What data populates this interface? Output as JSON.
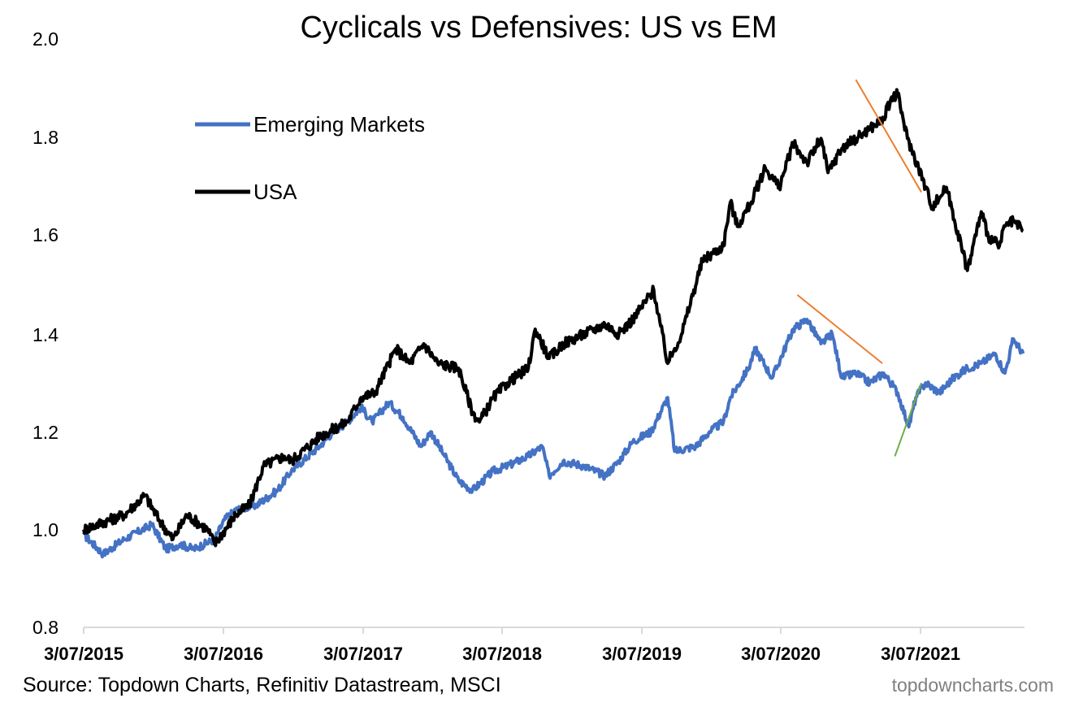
{
  "chart_data": {
    "type": "line",
    "title": "Cyclicals vs Defensives: US vs EM",
    "xlabel": "",
    "ylabel": "",
    "ylim": [
      0.8,
      2.0
    ],
    "yticks": [
      "0.8",
      "1.0",
      "1.2",
      "1.4",
      "1.6",
      "1.8",
      "2.0"
    ],
    "x_tick_labels": [
      "3/07/2015",
      "3/07/2016",
      "3/07/2017",
      "3/07/2018",
      "3/07/2019",
      "3/07/2020",
      "3/07/2021"
    ],
    "x_range": [
      2015.51,
      2022.26
    ],
    "legend_position": "top-left",
    "series": [
      {
        "name": "Emerging Markets",
        "color": "#4472C4",
        "x": [
          2015.51,
          2015.65,
          2015.8,
          2016.0,
          2016.1,
          2016.2,
          2016.3,
          2016.45,
          2016.52,
          2016.6,
          2016.75,
          2016.9,
          2017.0,
          2017.2,
          2017.3,
          2017.4,
          2017.5,
          2017.58,
          2017.7,
          2017.8,
          2017.93,
          2018.0,
          2018.1,
          2018.2,
          2018.3,
          2018.45,
          2018.55,
          2018.7,
          2018.8,
          2018.85,
          2018.95,
          2019.1,
          2019.25,
          2019.35,
          2019.45,
          2019.58,
          2019.7,
          2019.75,
          2019.9,
          2020.0,
          2020.1,
          2020.15,
          2020.28,
          2020.33,
          2020.45,
          2020.6,
          2020.7,
          2020.8,
          2020.88,
          2020.95,
          2021.05,
          2021.15,
          2021.25,
          2021.35,
          2021.43,
          2021.48,
          2021.55,
          2021.65,
          2021.75,
          2021.85,
          2021.95,
          2022.05,
          2022.12,
          2022.18,
          2022.25
        ],
        "values": [
          0.99,
          0.95,
          0.98,
          1.01,
          0.96,
          0.97,
          0.96,
          0.98,
          1.02,
          1.04,
          1.05,
          1.08,
          1.12,
          1.17,
          1.2,
          1.22,
          1.25,
          1.22,
          1.26,
          1.23,
          1.17,
          1.2,
          1.15,
          1.1,
          1.08,
          1.12,
          1.13,
          1.15,
          1.17,
          1.11,
          1.14,
          1.13,
          1.11,
          1.14,
          1.18,
          1.2,
          1.27,
          1.16,
          1.17,
          1.2,
          1.22,
          1.27,
          1.33,
          1.37,
          1.31,
          1.41,
          1.43,
          1.38,
          1.4,
          1.31,
          1.32,
          1.3,
          1.32,
          1.28,
          1.21,
          1.27,
          1.3,
          1.28,
          1.31,
          1.33,
          1.34,
          1.36,
          1.32,
          1.39,
          1.36
        ]
      },
      {
        "name": "USA",
        "color": "#000000",
        "x": [
          2015.51,
          2015.6,
          2015.8,
          2015.95,
          2016.05,
          2016.15,
          2016.25,
          2016.4,
          2016.45,
          2016.6,
          2016.7,
          2016.8,
          2016.95,
          2017.0,
          2017.2,
          2017.4,
          2017.5,
          2017.6,
          2017.75,
          2017.85,
          2017.95,
          2018.05,
          2018.2,
          2018.3,
          2018.35,
          2018.45,
          2018.55,
          2018.7,
          2018.75,
          2018.85,
          2018.95,
          2019.1,
          2019.25,
          2019.35,
          2019.45,
          2019.6,
          2019.7,
          2019.75,
          2019.8,
          2019.95,
          2020.1,
          2020.15,
          2020.2,
          2020.3,
          2020.4,
          2020.5,
          2020.6,
          2020.7,
          2020.8,
          2020.85,
          2020.95,
          2021.05,
          2021.15,
          2021.25,
          2021.3,
          2021.35,
          2021.42,
          2021.5,
          2021.6,
          2021.7,
          2021.85,
          2021.95,
          2022.0,
          2022.08,
          2022.12,
          2022.18,
          2022.25
        ],
        "values": [
          1.0,
          1.01,
          1.03,
          1.07,
          1.02,
          0.98,
          1.03,
          1.0,
          0.97,
          1.03,
          1.05,
          1.13,
          1.15,
          1.14,
          1.19,
          1.22,
          1.27,
          1.28,
          1.37,
          1.34,
          1.38,
          1.34,
          1.33,
          1.24,
          1.22,
          1.27,
          1.3,
          1.33,
          1.41,
          1.35,
          1.38,
          1.4,
          1.42,
          1.4,
          1.43,
          1.49,
          1.34,
          1.37,
          1.4,
          1.55,
          1.58,
          1.67,
          1.62,
          1.67,
          1.74,
          1.7,
          1.79,
          1.75,
          1.8,
          1.73,
          1.78,
          1.8,
          1.82,
          1.84,
          1.88,
          1.89,
          1.8,
          1.74,
          1.66,
          1.7,
          1.53,
          1.65,
          1.6,
          1.58,
          1.62,
          1.63,
          1.61
        ]
      }
    ],
    "annotations": [
      {
        "type": "trend-line",
        "color": "#ED7D31",
        "x": [
          2021.05,
          2021.52
        ],
        "y": [
          1.92,
          1.69
        ]
      },
      {
        "type": "trend-line",
        "color": "#ED7D31",
        "x": [
          2020.63,
          2021.24
        ],
        "y": [
          1.48,
          1.34
        ]
      },
      {
        "type": "trend-line",
        "color": "#70AD47",
        "x": [
          2021.33,
          2021.52
        ],
        "y": [
          1.15,
          1.3
        ]
      }
    ]
  },
  "footer": {
    "source": "Source: Topdown Charts, Refinitiv Datastream, MSCI",
    "brand": "topdowncharts.com"
  }
}
